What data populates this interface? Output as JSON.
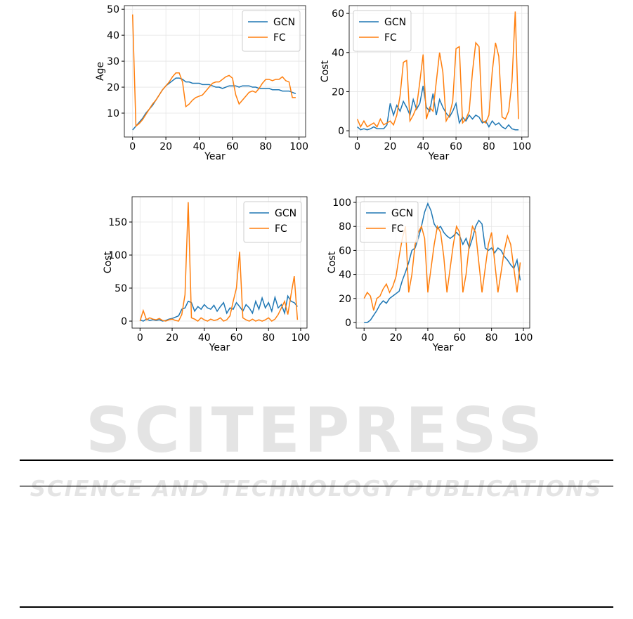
{
  "chart_data": [
    {
      "type": "line",
      "ylabel": "Age",
      "xlabel": "Year",
      "x": [
        0,
        2,
        4,
        6,
        8,
        10,
        12,
        14,
        16,
        18,
        20,
        22,
        24,
        26,
        28,
        30,
        32,
        34,
        36,
        38,
        40,
        42,
        44,
        46,
        48,
        50,
        52,
        54,
        56,
        58,
        60,
        62,
        64,
        66,
        68,
        70,
        72,
        74,
        76,
        78,
        80,
        82,
        84,
        86,
        88,
        90,
        92,
        94,
        96,
        98
      ],
      "series": [
        {
          "name": "GCN",
          "color": "#1f77b4",
          "values": [
            3.5,
            5,
            6.5,
            8,
            10,
            11.5,
            13,
            15,
            17,
            19,
            20.5,
            21.5,
            22.5,
            23.5,
            23.5,
            23,
            22,
            22,
            21.5,
            21.5,
            21.5,
            21,
            21,
            21,
            20.5,
            20,
            20,
            19.5,
            20,
            20.5,
            20.5,
            20.5,
            20,
            20.5,
            20.5,
            20.5,
            20,
            20,
            19.5,
            19.5,
            19.5,
            19.5,
            19,
            19,
            19,
            18.5,
            18.5,
            18.5,
            18,
            17.5
          ]
        },
        {
          "name": "FC",
          "color": "#ff7f0e",
          "values": [
            48,
            5,
            6,
            7.5,
            9.5,
            11.5,
            13.5,
            15,
            17,
            19,
            20.5,
            22,
            24,
            25.5,
            25.5,
            22,
            12.5,
            13.5,
            15,
            16,
            16.5,
            17,
            18.5,
            20,
            21.5,
            22,
            22,
            23,
            24,
            24.5,
            23.5,
            17,
            13.5,
            15,
            16.5,
            18,
            18.5,
            18,
            19.5,
            21.5,
            23,
            23,
            22.5,
            23,
            23,
            24,
            22.5,
            22,
            16,
            16
          ]
        }
      ],
      "xlim": [
        -4.95,
        103.95
      ],
      "ylim": [
        0.8,
        51.4
      ],
      "xticks": [
        0,
        20,
        40,
        60,
        80,
        100
      ],
      "yticks": [
        10,
        20,
        30,
        40,
        50
      ],
      "grid": true,
      "legend": "upper right"
    },
    {
      "type": "line",
      "ylabel": "Cost",
      "xlabel": "Year",
      "x": [
        0,
        2,
        4,
        6,
        8,
        10,
        12,
        14,
        16,
        18,
        20,
        22,
        24,
        26,
        28,
        30,
        32,
        34,
        36,
        38,
        40,
        42,
        44,
        46,
        48,
        50,
        52,
        54,
        56,
        58,
        60,
        62,
        64,
        66,
        68,
        70,
        72,
        74,
        76,
        78,
        80,
        82,
        84,
        86,
        88,
        90,
        92,
        94,
        96,
        98
      ],
      "series": [
        {
          "name": "GCN",
          "color": "#1f77b4",
          "values": [
            2,
            0.5,
            1,
            0.5,
            1,
            2,
            1,
            1,
            1,
            3,
            14,
            8,
            13,
            10,
            15,
            12,
            8,
            16,
            11,
            14,
            23,
            12,
            10,
            19,
            8,
            16,
            12,
            9,
            7,
            10,
            14,
            4,
            7,
            5,
            8,
            6,
            8,
            7,
            4,
            5,
            2,
            5,
            3,
            4,
            2,
            1,
            3,
            1,
            0.5,
            0.5
          ]
        },
        {
          "name": "FC",
          "color": "#ff7f0e",
          "values": [
            6,
            2,
            5,
            2,
            3,
            4,
            2,
            6,
            3,
            4,
            5,
            3,
            8,
            18,
            35,
            36,
            5,
            8,
            12,
            25,
            39,
            6,
            12,
            10,
            25,
            40,
            30,
            5,
            8,
            15,
            42,
            43,
            4,
            6,
            10,
            30,
            45,
            43,
            5,
            4,
            8,
            30,
            45,
            38,
            7,
            6,
            10,
            25,
            61,
            6
          ]
        }
      ],
      "xlim": [
        -4.95,
        103.95
      ],
      "ylim": [
        -3.2,
        64
      ],
      "xticks": [
        0,
        20,
        40,
        60,
        80,
        100
      ],
      "yticks": [
        0,
        20,
        40,
        60
      ],
      "grid": true,
      "legend": "upper left"
    },
    {
      "type": "line",
      "ylabel": "Cost",
      "xlabel": "Year",
      "x": [
        0,
        2,
        4,
        6,
        8,
        10,
        12,
        14,
        16,
        18,
        20,
        22,
        24,
        26,
        28,
        30,
        32,
        34,
        36,
        38,
        40,
        42,
        44,
        46,
        48,
        50,
        52,
        54,
        56,
        58,
        60,
        62,
        64,
        66,
        68,
        70,
        72,
        74,
        76,
        78,
        80,
        82,
        84,
        86,
        88,
        90,
        92,
        94,
        96,
        98
      ],
      "series": [
        {
          "name": "GCN",
          "color": "#1f77b4",
          "values": [
            2,
            0,
            3,
            1,
            2,
            1,
            2,
            0,
            1,
            3,
            4,
            6,
            8,
            18,
            20,
            30,
            28,
            15,
            22,
            18,
            25,
            20,
            18,
            24,
            15,
            22,
            28,
            12,
            20,
            18,
            28,
            22,
            15,
            25,
            20,
            12,
            30,
            18,
            35,
            20,
            28,
            15,
            36,
            20,
            25,
            12,
            38,
            30,
            28,
            22
          ]
        },
        {
          "name": "FC",
          "color": "#ff7f0e",
          "values": [
            0,
            16,
            2,
            5,
            3,
            2,
            4,
            1,
            0,
            2,
            3,
            1,
            0,
            10,
            40,
            180,
            5,
            3,
            0,
            5,
            2,
            0,
            3,
            1,
            2,
            5,
            0,
            2,
            8,
            30,
            50,
            105,
            5,
            2,
            0,
            3,
            0,
            2,
            0,
            2,
            5,
            0,
            3,
            10,
            20,
            30,
            10,
            40,
            68,
            2
          ]
        }
      ],
      "xlim": [
        -4.95,
        103.95
      ],
      "ylim": [
        -10.6,
        188.3
      ],
      "xticks": [
        0,
        20,
        40,
        60,
        80,
        100
      ],
      "yticks": [
        0,
        50,
        100,
        150
      ],
      "grid": true,
      "legend": "upper right"
    },
    {
      "type": "line",
      "ylabel": "Cost",
      "xlabel": "Year",
      "x": [
        0,
        2,
        4,
        6,
        8,
        10,
        12,
        14,
        16,
        18,
        20,
        22,
        24,
        26,
        28,
        30,
        32,
        34,
        36,
        38,
        40,
        42,
        44,
        46,
        48,
        50,
        52,
        54,
        56,
        58,
        60,
        62,
        64,
        66,
        68,
        70,
        72,
        74,
        76,
        78,
        80,
        82,
        84,
        86,
        88,
        90,
        92,
        94,
        96,
        98
      ],
      "series": [
        {
          "name": "GCN",
          "color": "#1f77b4",
          "values": [
            0,
            0,
            2,
            6,
            10,
            15,
            18,
            16,
            20,
            22,
            24,
            26,
            35,
            42,
            50,
            60,
            62,
            70,
            80,
            92,
            99,
            93,
            82,
            78,
            80,
            75,
            72,
            70,
            72,
            75,
            72,
            65,
            70,
            62,
            70,
            80,
            85,
            82,
            62,
            60,
            62,
            58,
            62,
            60,
            55,
            52,
            48,
            45,
            52,
            35
          ]
        },
        {
          "name": "FC",
          "color": "#ff7f0e",
          "values": [
            20,
            25,
            22,
            10,
            20,
            22,
            28,
            32,
            25,
            30,
            38,
            55,
            70,
            80,
            25,
            40,
            65,
            75,
            80,
            70,
            25,
            45,
            65,
            80,
            75,
            55,
            25,
            45,
            65,
            80,
            75,
            25,
            40,
            65,
            80,
            75,
            50,
            25,
            45,
            65,
            75,
            50,
            25,
            42,
            60,
            72,
            65,
            45,
            25,
            50
          ]
        }
      ],
      "xlim": [
        -4.95,
        103.95
      ],
      "ylim": [
        -4.7,
        104.7
      ],
      "xticks": [
        0,
        20,
        40,
        60,
        80,
        100
      ],
      "yticks": [
        0,
        20,
        40,
        60,
        80,
        100
      ],
      "grid": true,
      "legend": "upper left"
    }
  ],
  "watermark": {
    "title": "SCITEPRESS",
    "subtitle": "SCIENCE AND TECHNOLOGY PUBLICATIONS"
  }
}
